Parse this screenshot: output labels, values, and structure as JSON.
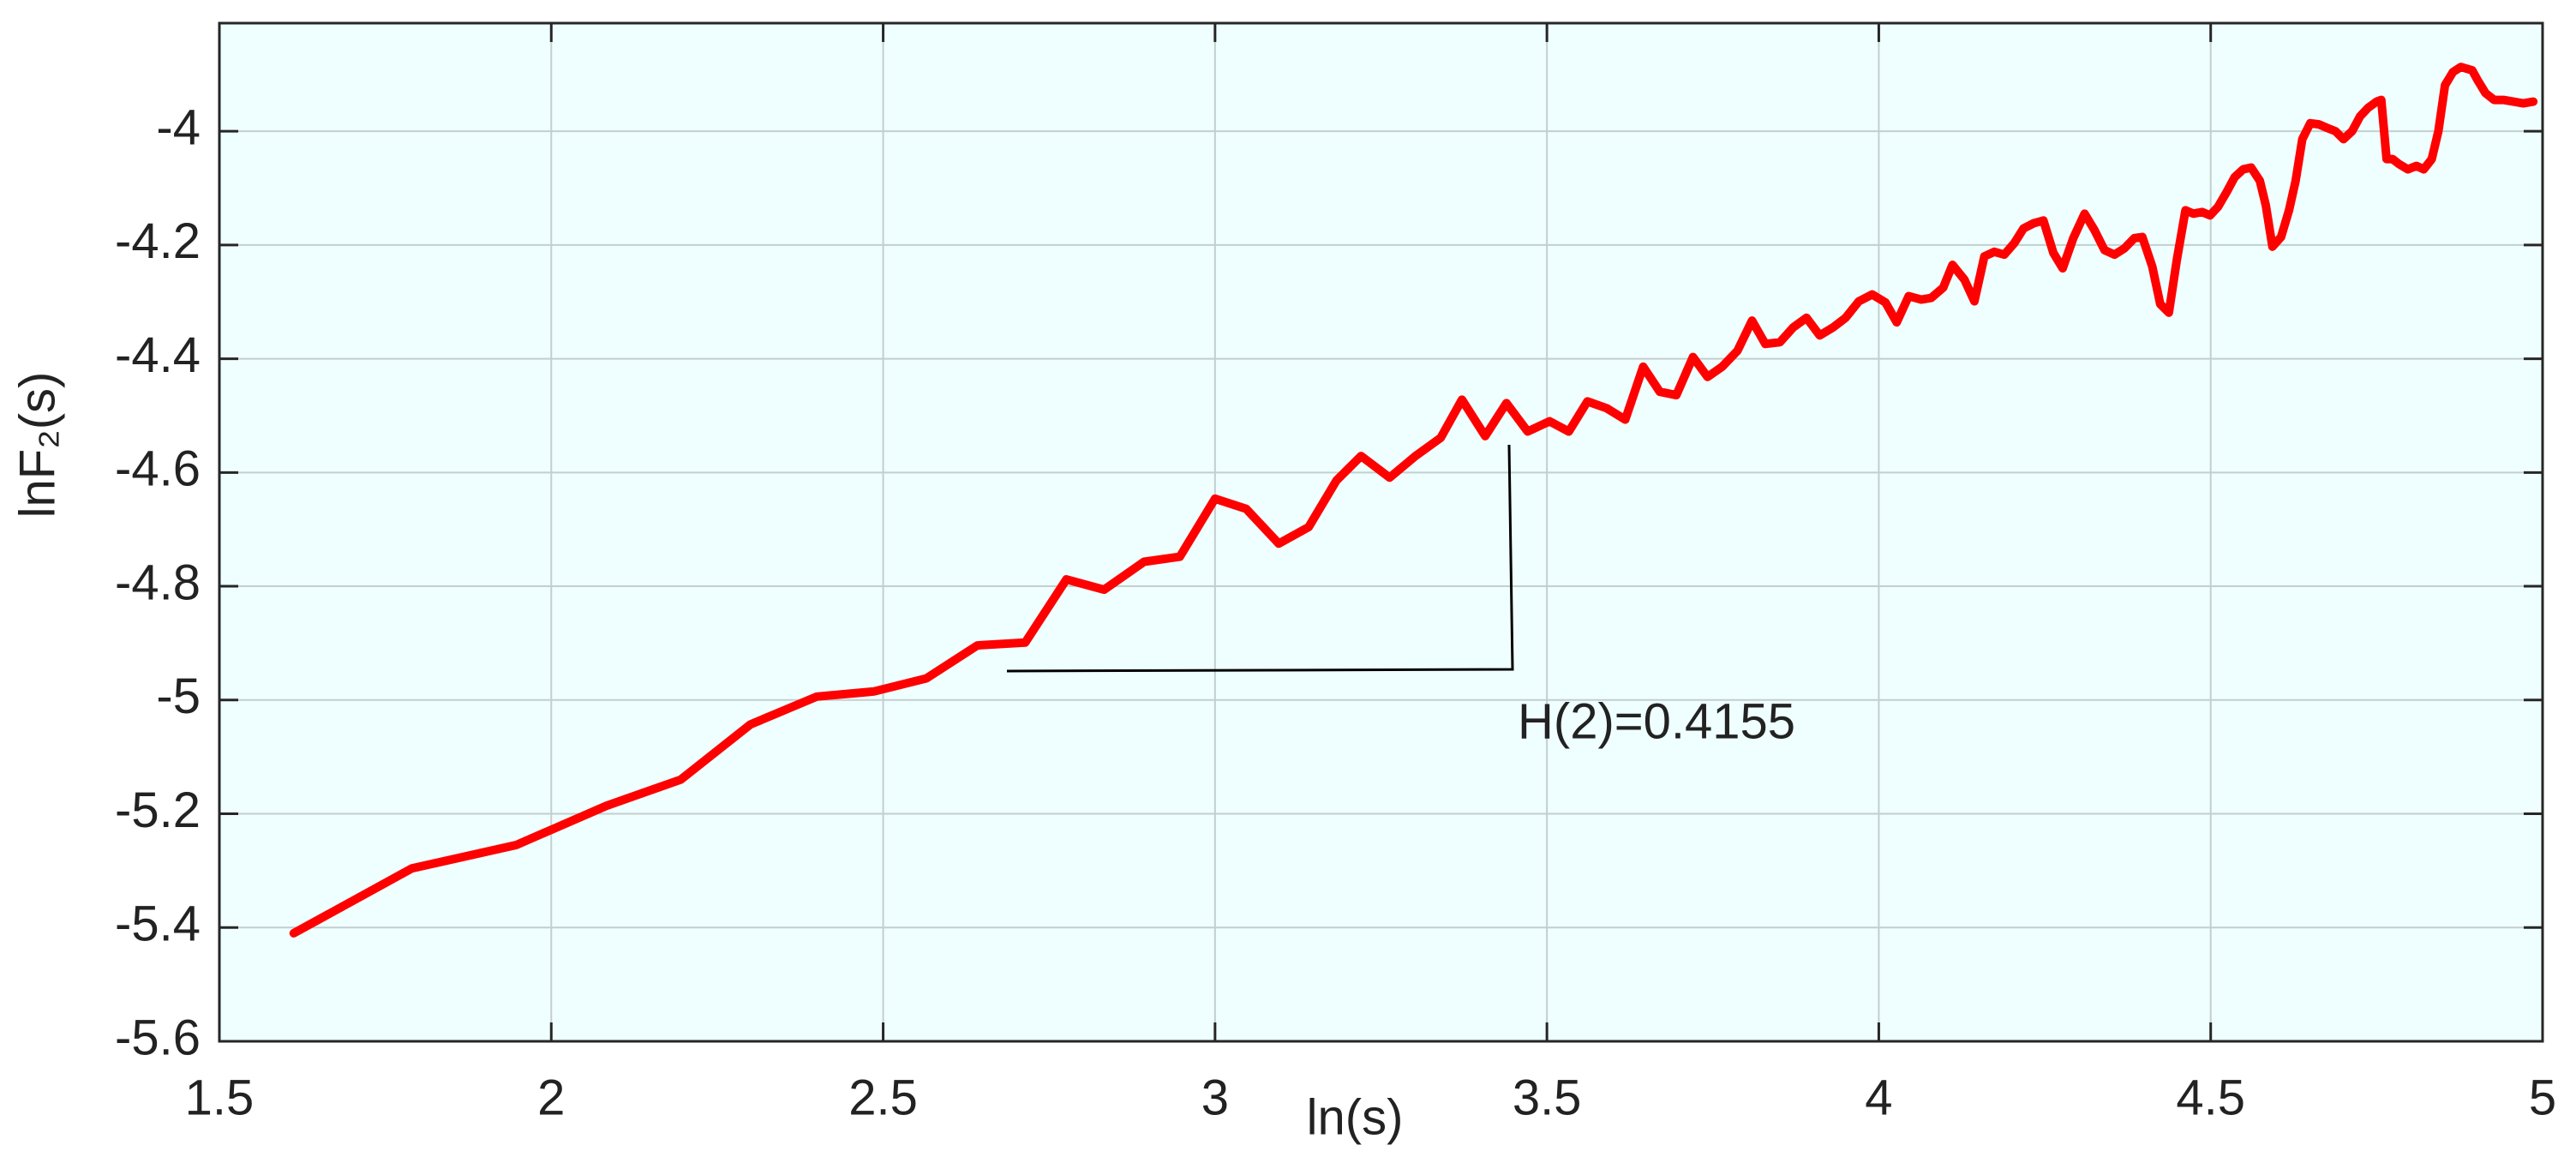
{
  "chart_data": {
    "type": "line",
    "x_label": "ln(s)",
    "y_label": "lnF₂(s)",
    "annotation": "H(2)=0.4155",
    "color": "#ff0000",
    "background": "#effefe",
    "grid": true,
    "xlim": [
      1.5,
      5
    ],
    "xticks": [
      1.5,
      2,
      2.5,
      3,
      3.5,
      4,
      4.5,
      5
    ],
    "ylim": [
      -5.6,
      -3.81
    ],
    "yticks": [
      -5.6,
      -5.4,
      -5.2,
      -5,
      -4.8,
      -4.6,
      -4.4,
      -4.2,
      -4
    ],
    "x": [
      1.612,
      1.79,
      1.947,
      2.083,
      2.195,
      2.3,
      2.4,
      2.486,
      2.565,
      2.642,
      2.714,
      2.776,
      2.833,
      2.893,
      2.947,
      3.0,
      3.047,
      3.096,
      3.141,
      3.183,
      3.22,
      3.263,
      3.302,
      3.34,
      3.372,
      3.407,
      3.439,
      3.471,
      3.504,
      3.533,
      3.561,
      3.59,
      3.618,
      3.645,
      3.67,
      3.695,
      3.72,
      3.742,
      3.764,
      3.787,
      3.809,
      3.829,
      3.851,
      3.871,
      3.891,
      3.911,
      3.931,
      3.95,
      3.97,
      3.99,
      4.01,
      4.027,
      4.045,
      4.064,
      4.079,
      4.097,
      4.111,
      4.129,
      4.144,
      4.159,
      4.174,
      4.189,
      4.204,
      4.218,
      4.233,
      4.248,
      4.263,
      4.277,
      4.293,
      4.31,
      4.325,
      4.34,
      4.355,
      4.37,
      4.385,
      4.397,
      4.412,
      4.424,
      4.437,
      4.449,
      4.462,
      4.474,
      4.487,
      4.499,
      4.511,
      4.524,
      4.536,
      4.549,
      4.561,
      4.574,
      4.583,
      4.593,
      4.606,
      4.618,
      4.628,
      4.638,
      4.65,
      4.663,
      4.675,
      4.688,
      4.7,
      4.713,
      4.725,
      4.737,
      4.75,
      4.757,
      4.765,
      4.774,
      4.784,
      4.797,
      4.81,
      4.821,
      4.833,
      4.843,
      4.853,
      4.865,
      4.877,
      4.894,
      4.902,
      4.914,
      4.927,
      4.941,
      4.956,
      4.971,
      4.986
    ],
    "values": [
      -5.41,
      -5.296,
      -5.255,
      -5.186,
      -5.14,
      -5.043,
      -4.994,
      -4.985,
      -4.962,
      -4.904,
      -4.899,
      -4.788,
      -4.806,
      -4.757,
      -4.748,
      -4.646,
      -4.664,
      -4.725,
      -4.696,
      -4.614,
      -4.571,
      -4.609,
      -4.571,
      -4.539,
      -4.472,
      -4.536,
      -4.478,
      -4.528,
      -4.51,
      -4.528,
      -4.475,
      -4.487,
      -4.507,
      -4.414,
      -4.458,
      -4.464,
      -4.397,
      -4.432,
      -4.414,
      -4.386,
      -4.333,
      -4.374,
      -4.371,
      -4.345,
      -4.328,
      -4.359,
      -4.345,
      -4.328,
      -4.299,
      -4.287,
      -4.301,
      -4.336,
      -4.29,
      -4.296,
      -4.293,
      -4.275,
      -4.235,
      -4.261,
      -4.299,
      -4.22,
      -4.212,
      -4.217,
      -4.197,
      -4.171,
      -4.162,
      -4.157,
      -4.214,
      -4.241,
      -4.188,
      -4.145,
      -4.174,
      -4.209,
      -4.217,
      -4.206,
      -4.188,
      -4.186,
      -4.238,
      -4.304,
      -4.319,
      -4.226,
      -4.139,
      -4.145,
      -4.142,
      -4.148,
      -4.133,
      -4.107,
      -4.081,
      -4.067,
      -4.064,
      -4.087,
      -4.13,
      -4.203,
      -4.186,
      -4.139,
      -4.087,
      -4.014,
      -3.986,
      -3.988,
      -3.994,
      -4.0,
      -4.014,
      -4.0,
      -3.974,
      -3.959,
      -3.948,
      -3.945,
      -4.049,
      -4.049,
      -4.058,
      -4.067,
      -4.061,
      -4.067,
      -4.049,
      -4.0,
      -3.919,
      -3.896,
      -3.887,
      -3.893,
      -3.91,
      -3.933,
      -3.945,
      -3.945,
      -3.948,
      -3.951,
      -3.948
    ]
  }
}
